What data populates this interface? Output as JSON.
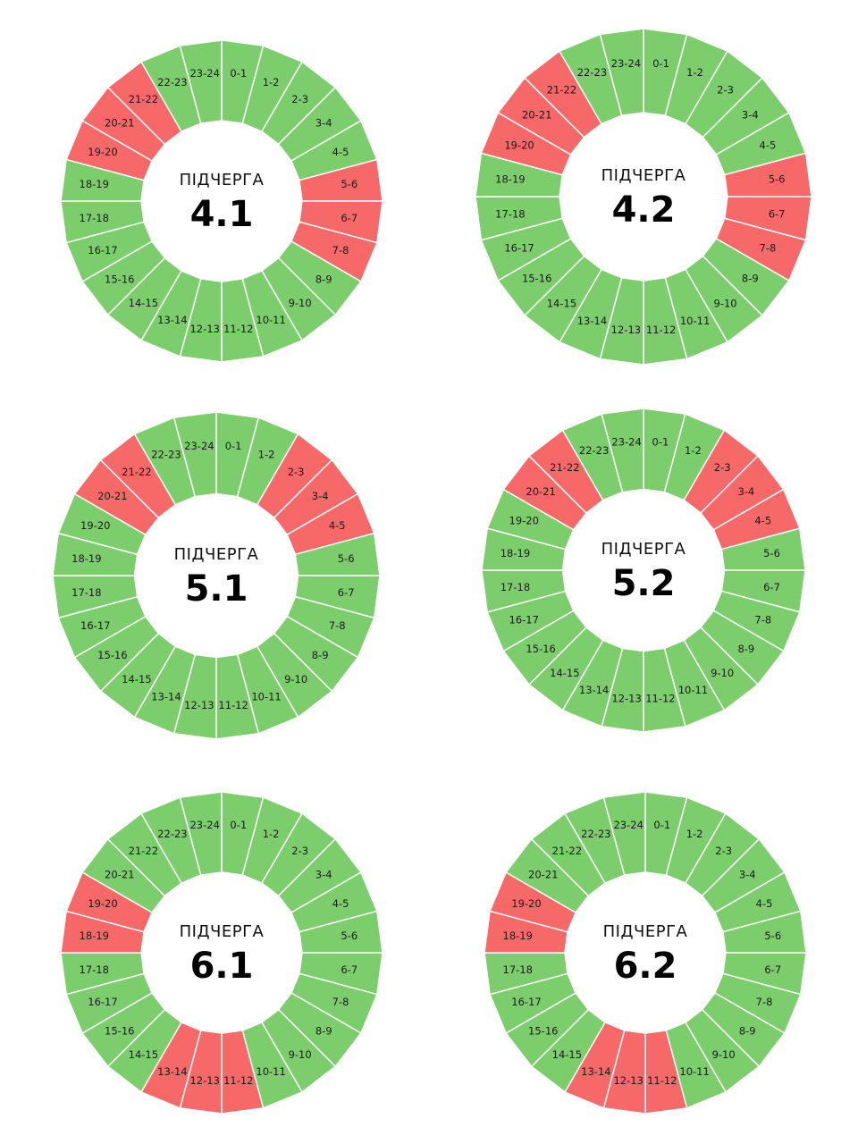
{
  "colors": {
    "on": "#7ccd6c",
    "off": "#f76868",
    "divider": "#ffffff"
  },
  "legend_semantics": {
    "green": "power on",
    "red": "outage"
  },
  "chart_data": [
    {
      "type": "pie",
      "title": "ПІДЧЕРГА",
      "number": "4.1",
      "categories": [
        "0-1",
        "1-2",
        "2-3",
        "3-4",
        "4-5",
        "5-6",
        "6-7",
        "7-8",
        "8-9",
        "9-10",
        "10-11",
        "11-12",
        "12-13",
        "13-14",
        "14-15",
        "15-16",
        "16-17",
        "17-18",
        "18-19",
        "19-20",
        "20-21",
        "21-22",
        "22-23",
        "23-24"
      ],
      "outage": [
        "5-6",
        "6-7",
        "7-8",
        "19-20",
        "20-21",
        "21-22"
      ]
    },
    {
      "type": "pie",
      "title": "ПІДЧЕРГА",
      "number": "4.2",
      "categories": [
        "0-1",
        "1-2",
        "2-3",
        "3-4",
        "4-5",
        "5-6",
        "6-7",
        "7-8",
        "8-9",
        "9-10",
        "10-11",
        "11-12",
        "12-13",
        "13-14",
        "14-15",
        "15-16",
        "16-17",
        "17-18",
        "18-19",
        "19-20",
        "20-21",
        "21-22",
        "22-23",
        "23-24"
      ],
      "outage": [
        "5-6",
        "6-7",
        "7-8",
        "19-20",
        "20-21",
        "21-22"
      ]
    },
    {
      "type": "pie",
      "title": "ПІДЧЕРГА",
      "number": "5.1",
      "categories": [
        "0-1",
        "1-2",
        "2-3",
        "3-4",
        "4-5",
        "5-6",
        "6-7",
        "7-8",
        "8-9",
        "9-10",
        "10-11",
        "11-12",
        "12-13",
        "13-14",
        "14-15",
        "15-16",
        "16-17",
        "17-18",
        "18-19",
        "19-20",
        "20-21",
        "21-22",
        "22-23",
        "23-24"
      ],
      "outage": [
        "2-3",
        "3-4",
        "4-5",
        "20-21",
        "21-22"
      ]
    },
    {
      "type": "pie",
      "title": "ПІДЧЕРГА",
      "number": "5.2",
      "categories": [
        "0-1",
        "1-2",
        "2-3",
        "3-4",
        "4-5",
        "5-6",
        "6-7",
        "7-8",
        "8-9",
        "9-10",
        "10-11",
        "11-12",
        "12-13",
        "13-14",
        "14-15",
        "15-16",
        "16-17",
        "17-18",
        "18-19",
        "19-20",
        "20-21",
        "21-22",
        "22-23",
        "23-24"
      ],
      "outage": [
        "2-3",
        "3-4",
        "4-5",
        "20-21",
        "21-22"
      ]
    },
    {
      "type": "pie",
      "title": "ПІДЧЕРГА",
      "number": "6.1",
      "categories": [
        "0-1",
        "1-2",
        "2-3",
        "3-4",
        "4-5",
        "5-6",
        "6-7",
        "7-8",
        "8-9",
        "9-10",
        "10-11",
        "11-12",
        "12-13",
        "13-14",
        "14-15",
        "15-16",
        "16-17",
        "17-18",
        "18-19",
        "19-20",
        "20-21",
        "21-22",
        "22-23",
        "23-24"
      ],
      "outage": [
        "11-12",
        "12-13",
        "13-14",
        "18-19",
        "19-20"
      ]
    },
    {
      "type": "pie",
      "title": "ПІДЧЕРГА",
      "number": "6.2",
      "categories": [
        "0-1",
        "1-2",
        "2-3",
        "3-4",
        "4-5",
        "5-6",
        "6-7",
        "7-8",
        "8-9",
        "9-10",
        "10-11",
        "11-12",
        "12-13",
        "13-14",
        "14-15",
        "15-16",
        "16-17",
        "17-18",
        "18-19",
        "19-20",
        "20-21",
        "21-22",
        "22-23",
        "23-24"
      ],
      "outage": [
        "11-12",
        "12-13",
        "13-14",
        "18-19",
        "19-20"
      ]
    }
  ]
}
